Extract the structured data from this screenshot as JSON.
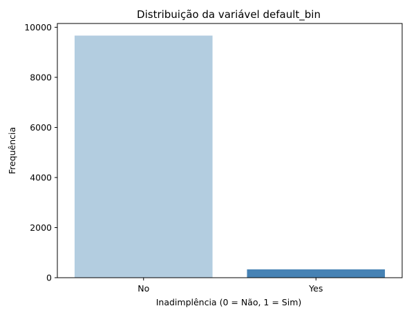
{
  "chart_data": {
    "type": "bar",
    "title": "Distribuição da variável default_bin",
    "xlabel": "Inadimplência (0 = Não, 1 = Sim)",
    "ylabel": "Frequência",
    "categories": [
      "No",
      "Yes"
    ],
    "values": [
      9667,
      333
    ],
    "colors": [
      "#b3cde0",
      "#4682b4"
    ],
    "ylim": [
      0,
      10150
    ],
    "yticks": [
      0,
      2000,
      4000,
      6000,
      8000,
      10000
    ],
    "grid": false,
    "legend": "none"
  }
}
